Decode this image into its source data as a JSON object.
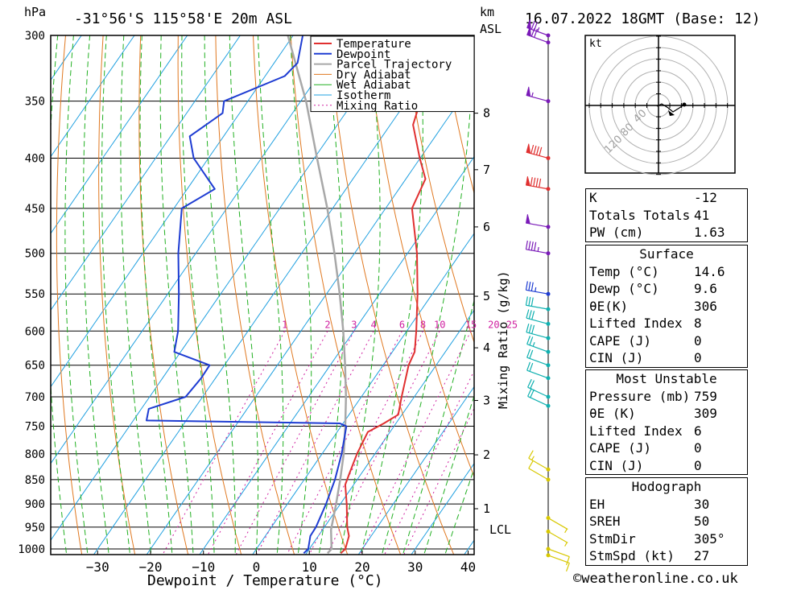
{
  "header": {
    "left_unit": "hPa",
    "location": "-31°56'S 115°58'E 20m ASL",
    "right_unit_1": "km",
    "right_unit_2": "ASL",
    "datetime": "16.07.2022 18GMT (Base: 12)"
  },
  "chart_data": {
    "type": "line",
    "xlabel": "Dewpoint / Temperature (°C)",
    "ylabel": "hPa",
    "mixing_ratio_axis_label": "Mixing Ratio (g/kg)",
    "pressure_ticks": [
      300,
      350,
      400,
      450,
      500,
      550,
      600,
      650,
      700,
      750,
      800,
      850,
      900,
      950,
      1000
    ],
    "temperature_ticks": [
      -30,
      -20,
      -10,
      0,
      10,
      20,
      30,
      40
    ],
    "xlim": [
      -40,
      40
    ],
    "ylim": [
      1020,
      300
    ],
    "height_ticks_km": [
      {
        "label": "8",
        "p": 360
      },
      {
        "label": "7",
        "p": 411
      },
      {
        "label": "6",
        "p": 470
      },
      {
        "label": "5",
        "p": 553
      },
      {
        "label": "4",
        "p": 624
      },
      {
        "label": "3",
        "p": 706
      },
      {
        "label": "2",
        "p": 802
      },
      {
        "label": "1",
        "p": 910
      },
      {
        "label": "LCL",
        "p": 956
      }
    ],
    "mixing_ratio_labels": [
      "1",
      "2",
      "3",
      "4",
      "6",
      "8",
      "10",
      "15",
      "20",
      "25"
    ],
    "legend": [
      "Temperature",
      "Dewpoint",
      "Parcel Trajectory",
      "Dry Adiabat",
      "Wet Adiabat",
      "Isotherm",
      "Mixing Ratio"
    ],
    "colors": {
      "temperature": "#e03030",
      "dewpoint": "#1e3cd2",
      "parcel": "#a8a8a8",
      "dry_adiabat": "#e07820",
      "wet_adiabat": "#22b022",
      "isotherm": "#20a0e0",
      "mixing_ratio": "#d020a0"
    },
    "series": [
      {
        "name": "Temperature",
        "points": [
          [
            1010,
            16.5
          ],
          [
            1000,
            16.8
          ],
          [
            970,
            15.8
          ],
          [
            950,
            14.3
          ],
          [
            900,
            11.2
          ],
          [
            860,
            8.4
          ],
          [
            840,
            7.8
          ],
          [
            800,
            6.6
          ],
          [
            760,
            5.8
          ],
          [
            745,
            7.7
          ],
          [
            730,
            9.3
          ],
          [
            700,
            7.6
          ],
          [
            650,
            4.8
          ],
          [
            630,
            4.2
          ],
          [
            600,
            1.8
          ],
          [
            550,
            -2.8
          ],
          [
            500,
            -8.2
          ],
          [
            450,
            -15.0
          ],
          [
            420,
            -16.3
          ],
          [
            400,
            -20.1
          ],
          [
            370,
            -25.7
          ],
          [
            350,
            -27.4
          ],
          [
            325,
            -29.5
          ],
          [
            300,
            -37.0
          ]
        ]
      },
      {
        "name": "Dewpoint",
        "points": [
          [
            1010,
            9.5
          ],
          [
            1000,
            9.8
          ],
          [
            970,
            8.5
          ],
          [
            950,
            8.4
          ],
          [
            900,
            7.3
          ],
          [
            850,
            5.8
          ],
          [
            800,
            3.7
          ],
          [
            750,
            1.0
          ],
          [
            745,
            -0.6
          ],
          [
            740,
            -37.5
          ],
          [
            720,
            -38.6
          ],
          [
            700,
            -33.2
          ],
          [
            670,
            -32.7
          ],
          [
            650,
            -32.8
          ],
          [
            630,
            -41.2
          ],
          [
            600,
            -43.2
          ],
          [
            550,
            -47.9
          ],
          [
            500,
            -53.3
          ],
          [
            450,
            -58.5
          ],
          [
            430,
            -54.8
          ],
          [
            400,
            -62.8
          ],
          [
            380,
            -66.4
          ],
          [
            360,
            -63.2
          ],
          [
            350,
            -64.5
          ],
          [
            330,
            -56.3
          ],
          [
            320,
            -55.6
          ],
          [
            300,
            -58.2
          ]
        ]
      },
      {
        "name": "Parcel Trajectory",
        "points": [
          [
            1010,
            14.0
          ],
          [
            1000,
            14.2
          ],
          [
            956,
            11.6
          ],
          [
            900,
            9.2
          ],
          [
            850,
            6.8
          ],
          [
            800,
            4.1
          ],
          [
            750,
            0.8
          ],
          [
            700,
            -2.9
          ],
          [
            650,
            -7.2
          ],
          [
            600,
            -12.0
          ],
          [
            550,
            -17.5
          ],
          [
            500,
            -23.8
          ],
          [
            450,
            -31.0
          ],
          [
            400,
            -39.5
          ],
          [
            350,
            -49.0
          ],
          [
            300,
            -61.0
          ]
        ]
      }
    ],
    "wind_barbs": [
      {
        "p": 300,
        "dir": 290,
        "spd": 75
      },
      {
        "p": 305,
        "dir": 290,
        "spd": 70
      },
      {
        "p": 350,
        "dir": 285,
        "spd": 55
      },
      {
        "p": 400,
        "dir": 285,
        "spd": 90
      },
      {
        "p": 430,
        "dir": 280,
        "spd": 90
      },
      {
        "p": 470,
        "dir": 280,
        "spd": 50
      },
      {
        "p": 500,
        "dir": 280,
        "spd": 45
      },
      {
        "p": 550,
        "dir": 280,
        "spd": 35
      },
      {
        "p": 570,
        "dir": 280,
        "spd": 30
      },
      {
        "p": 590,
        "dir": 285,
        "spd": 30
      },
      {
        "p": 610,
        "dir": 285,
        "spd": 30
      },
      {
        "p": 630,
        "dir": 290,
        "spd": 25
      },
      {
        "p": 650,
        "dir": 290,
        "spd": 20
      },
      {
        "p": 670,
        "dir": 290,
        "spd": 20
      },
      {
        "p": 700,
        "dir": 295,
        "spd": 20
      },
      {
        "p": 715,
        "dir": 295,
        "spd": 20
      },
      {
        "p": 830,
        "dir": 300,
        "spd": 15
      },
      {
        "p": 850,
        "dir": 300,
        "spd": 10
      },
      {
        "p": 930,
        "dir": 120,
        "spd": 5
      },
      {
        "p": 960,
        "dir": 120,
        "spd": 5
      },
      {
        "p": 1000,
        "dir": 110,
        "spd": 10
      },
      {
        "p": 1015,
        "dir": 110,
        "spd": 10
      }
    ],
    "hodograph": {
      "unit": "kt",
      "ring_labels": [
        "40",
        "80",
        "120"
      ]
    }
  },
  "indices": [
    {
      "key": "K",
      "value": "-12"
    },
    {
      "key": "Totals Totals",
      "value": "41"
    },
    {
      "key": "PW (cm)",
      "value": "1.63"
    }
  ],
  "surface": {
    "title": "Surface",
    "rows": [
      {
        "key": "Temp (°C)",
        "value": "14.6"
      },
      {
        "key": "Dewp (°C)",
        "value": "9.6"
      },
      {
        "key": "θE(K)",
        "value": "306"
      },
      {
        "key": "Lifted Index",
        "value": "8"
      },
      {
        "key": "CAPE (J)",
        "value": "0"
      },
      {
        "key": "CIN (J)",
        "value": "0"
      }
    ]
  },
  "most_unstable": {
    "title": "Most Unstable",
    "rows": [
      {
        "key": "Pressure (mb)",
        "value": "759"
      },
      {
        "key": "θE (K)",
        "value": "309"
      },
      {
        "key": "Lifted Index",
        "value": "6"
      },
      {
        "key": "CAPE (J)",
        "value": "0"
      },
      {
        "key": "CIN (J)",
        "value": "0"
      }
    ]
  },
  "hodograph_table": {
    "title": "Hodograph",
    "rows": [
      {
        "key": "EH",
        "value": "30"
      },
      {
        "key": "SREH",
        "value": "50"
      },
      {
        "key": "StmDir",
        "value": "305°"
      },
      {
        "key": "StmSpd (kt)",
        "value": "27"
      }
    ]
  },
  "footer": {
    "copyright": "©weatheronline.co.uk"
  }
}
